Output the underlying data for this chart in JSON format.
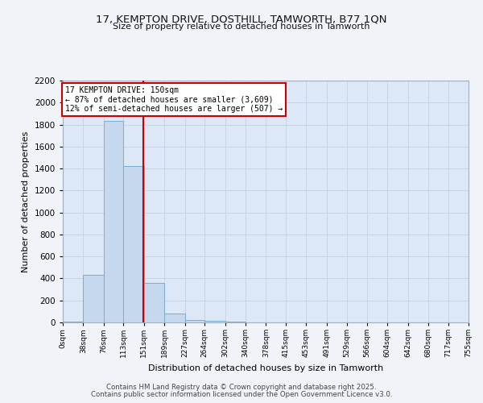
{
  "title": "17, KEMPTON DRIVE, DOSTHILL, TAMWORTH, B77 1QN",
  "subtitle": "Size of property relative to detached houses in Tamworth",
  "xlabel": "Distribution of detached houses by size in Tamworth",
  "ylabel": "Number of detached properties",
  "bin_edges": [
    0,
    38,
    76,
    113,
    151,
    189,
    227,
    264,
    302,
    340,
    378,
    415,
    453,
    491,
    529,
    566,
    604,
    642,
    680,
    717,
    755
  ],
  "bin_labels": [
    "0sqm",
    "38sqm",
    "76sqm",
    "113sqm",
    "151sqm",
    "189sqm",
    "227sqm",
    "264sqm",
    "302sqm",
    "340sqm",
    "378sqm",
    "415sqm",
    "453sqm",
    "491sqm",
    "529sqm",
    "566sqm",
    "604sqm",
    "642sqm",
    "680sqm",
    "717sqm",
    "755sqm"
  ],
  "bar_heights": [
    10,
    430,
    1830,
    1420,
    360,
    80,
    25,
    15,
    5,
    2,
    1,
    0,
    0,
    0,
    0,
    0,
    0,
    0,
    0,
    0
  ],
  "bar_color": "#c5d8ee",
  "bar_edge_color": "#7aadd4",
  "vline_x": 150,
  "vline_color": "#cc0000",
  "annotation_title": "17 KEMPTON DRIVE: 150sqm",
  "annotation_line1": "← 87% of detached houses are smaller (3,609)",
  "annotation_line2": "12% of semi-detached houses are larger (507) →",
  "annotation_box_color": "#cc0000",
  "annotation_bg": "#ffffff",
  "ylim": [
    0,
    2200
  ],
  "yticks": [
    0,
    200,
    400,
    600,
    800,
    1000,
    1200,
    1400,
    1600,
    1800,
    2000,
    2200
  ],
  "grid_color": "#c8d4e4",
  "bg_color": "#dce8f5",
  "fig_bg_color": "#f0f4f8",
  "footer1": "Contains HM Land Registry data © Crown copyright and database right 2025.",
  "footer2": "Contains public sector information licensed under the Open Government Licence v3.0."
}
